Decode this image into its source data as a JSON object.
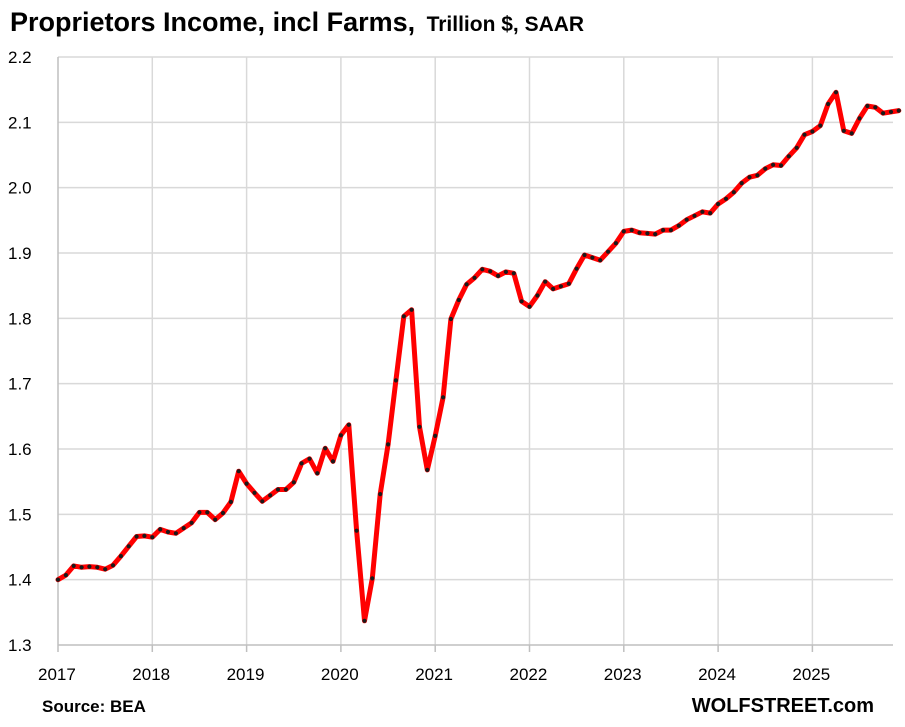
{
  "chart_data": {
    "type": "line",
    "title": "Proprietors Income, incl Farms,",
    "subtitle": "Trillion $, SAAR",
    "xlabel": "",
    "ylabel": "",
    "ylim": [
      1.3,
      2.2
    ],
    "xlim": [
      "2017-01",
      "2025-12"
    ],
    "y_ticks": [
      "1.3",
      "1.4",
      "1.5",
      "1.6",
      "1.7",
      "1.8",
      "1.9",
      "2.0",
      "2.1",
      "2.2"
    ],
    "x_ticks": [
      "2017",
      "2018",
      "2019",
      "2020",
      "2021",
      "2022",
      "2023",
      "2024",
      "2025"
    ],
    "grid": true,
    "line_color": "#ff0000",
    "marker_color": "#1a1a1a",
    "series": [
      {
        "x": [
          "2017-01",
          "2017-02",
          "2017-03",
          "2017-04",
          "2017-05",
          "2017-06",
          "2017-07",
          "2017-08",
          "2017-09",
          "2017-10",
          "2017-11",
          "2017-12",
          "2018-01",
          "2018-02",
          "2018-03",
          "2018-04",
          "2018-05",
          "2018-06",
          "2018-07",
          "2018-08",
          "2018-09",
          "2018-10",
          "2018-11",
          "2018-12",
          "2019-01",
          "2019-02",
          "2019-03",
          "2019-04",
          "2019-05",
          "2019-06",
          "2019-07",
          "2019-08",
          "2019-09",
          "2019-10",
          "2019-11",
          "2019-12",
          "2020-01",
          "2020-02",
          "2020-03",
          "2020-04",
          "2020-05",
          "2020-06",
          "2020-07",
          "2020-08",
          "2020-09",
          "2020-10",
          "2020-11",
          "2020-12",
          "2021-01",
          "2021-02",
          "2021-03",
          "2021-04",
          "2021-05",
          "2021-06",
          "2021-07",
          "2021-08",
          "2021-09",
          "2021-10",
          "2021-11",
          "2021-12",
          "2022-01",
          "2022-02",
          "2022-03",
          "2022-04",
          "2022-05",
          "2022-06",
          "2022-07",
          "2022-08",
          "2022-09",
          "2022-10",
          "2022-11",
          "2022-12",
          "2023-01",
          "2023-02",
          "2023-03",
          "2023-04",
          "2023-05",
          "2023-06",
          "2023-07",
          "2023-08",
          "2023-09",
          "2023-10",
          "2023-11",
          "2023-12",
          "2024-01",
          "2024-02",
          "2024-03",
          "2024-04",
          "2024-05",
          "2024-06",
          "2024-07",
          "2024-08",
          "2024-09",
          "2024-10",
          "2024-11",
          "2024-12",
          "2025-01",
          "2025-02",
          "2025-03",
          "2025-04",
          "2025-05",
          "2025-06",
          "2025-07",
          "2025-08",
          "2025-09",
          "2025-10",
          "2025-11",
          "2025-12"
        ],
        "values": [
          1.4,
          1.407,
          1.421,
          1.419,
          1.42,
          1.419,
          1.416,
          1.422,
          1.436,
          1.451,
          1.466,
          1.467,
          1.465,
          1.477,
          1.473,
          1.471,
          1.479,
          1.487,
          1.503,
          1.503,
          1.492,
          1.502,
          1.519,
          1.566,
          1.547,
          1.533,
          1.52,
          1.529,
          1.538,
          1.538,
          1.549,
          1.578,
          1.585,
          1.563,
          1.601,
          1.581,
          1.621,
          1.637,
          1.475,
          1.337,
          1.402,
          1.531,
          1.607,
          1.705,
          1.803,
          1.813,
          1.634,
          1.568,
          1.62,
          1.679,
          1.799,
          1.828,
          1.852,
          1.862,
          1.875,
          1.872,
          1.865,
          1.871,
          1.869,
          1.826,
          1.818,
          1.835,
          1.856,
          1.845,
          1.849,
          1.853,
          1.876,
          1.897,
          1.893,
          1.889,
          1.902,
          1.915,
          1.933,
          1.935,
          1.931,
          1.93,
          1.929,
          1.935,
          1.935,
          1.942,
          1.951,
          1.957,
          1.963,
          1.961,
          1.975,
          1.983,
          1.993,
          2.007,
          2.016,
          2.019,
          2.029,
          2.035,
          2.034,
          2.048,
          2.061,
          2.081,
          2.086,
          2.095,
          2.128,
          2.146,
          2.087,
          2.083,
          2.106,
          2.125,
          2.123,
          2.114,
          2.116,
          2.118
        ]
      }
    ]
  },
  "footer": {
    "source": "Source: BEA",
    "brand": "WOLFSTREET.com"
  }
}
